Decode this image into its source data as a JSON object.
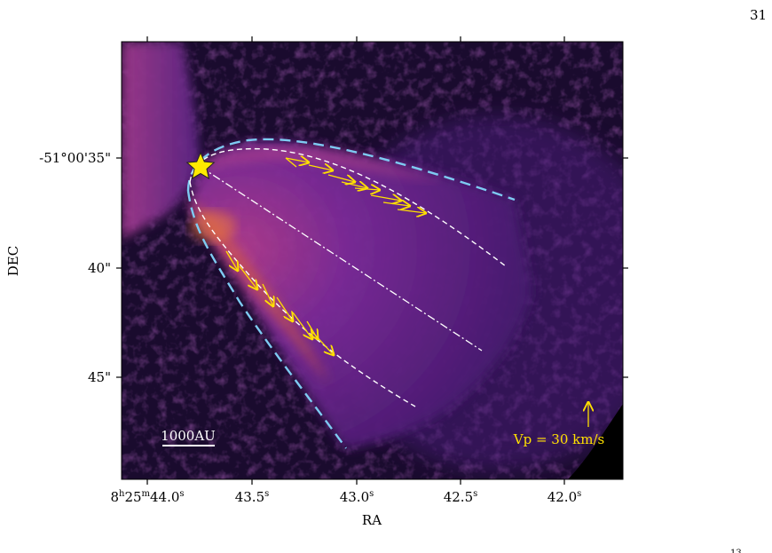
{
  "page": {
    "number": "31",
    "corner_mark": "13"
  },
  "chart_data": {
    "type": "image",
    "xlabel": "RA",
    "ylabel": "DEC",
    "x_ticks": [
      {
        "ra_s": 44.0,
        "label": "8h25m44.0s",
        "parts": {
          "h": "8",
          "m": "25",
          "s": "44.0"
        }
      },
      {
        "ra_s": 43.5,
        "label": "43.5s",
        "parts": {
          "s": "43.5"
        }
      },
      {
        "ra_s": 43.0,
        "label": "43.0s",
        "parts": {
          "s": "43.0"
        }
      },
      {
        "ra_s": 42.5,
        "label": "42.5s",
        "parts": {
          "s": "42.5"
        }
      },
      {
        "ra_s": 42.0,
        "label": "42.0s",
        "parts": {
          "s": "42.0"
        }
      }
    ],
    "y_ticks": [
      {
        "dec_arcsec": 35,
        "label": "-51°00'35\""
      },
      {
        "dec_arcsec": 40,
        "label": "40\""
      },
      {
        "dec_arcsec": 45,
        "label": "45\""
      }
    ],
    "colormap": "inferno",
    "colors": {
      "lobe": "#8a2fa0",
      "bright": "#e06030",
      "outer_curve": "#7ecbf2",
      "inner_curve": "#ffffff",
      "vectors": "#ffe000",
      "star": "#ffea00"
    },
    "scalebar": {
      "label": "1000AU"
    },
    "velocity_key": {
      "label": "Vp = 30 km/s",
      "value_kms": 30
    },
    "source_marker": {
      "shape": "star",
      "ra_s": 43.76,
      "dec_arcsec": 35.2
    }
  }
}
